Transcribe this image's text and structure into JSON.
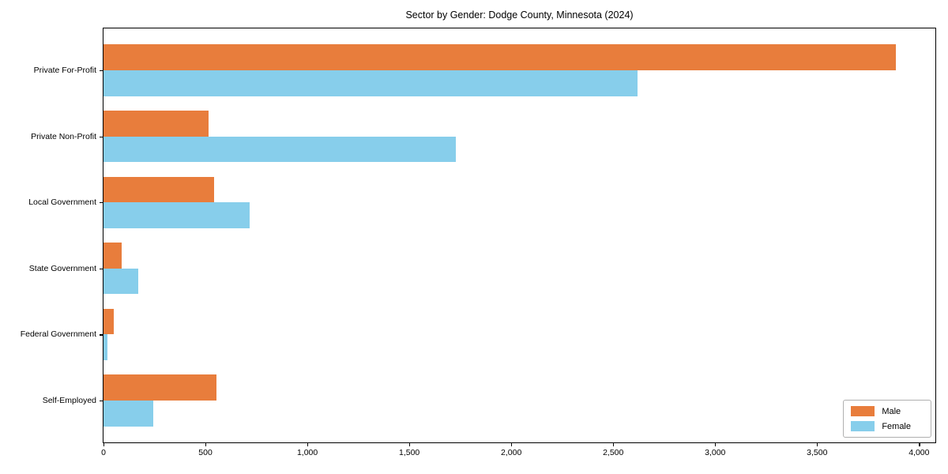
{
  "title": "Sector by Gender: Dodge County, Minnesota (2024)",
  "chart_data": {
    "type": "bar",
    "orientation": "horizontal",
    "title": "Sector by Gender: Dodge County, Minnesota (2024)",
    "categories": [
      "Private For-Profit",
      "Private Non-Profit",
      "Local Government",
      "State Government",
      "Federal Government",
      "Self-Employed"
    ],
    "series": [
      {
        "name": "Male",
        "color": "#e87d3c",
        "values": [
          3885,
          517,
          544,
          91,
          49,
          553
        ]
      },
      {
        "name": "Female",
        "color": "#87ceeb",
        "values": [
          2618,
          1730,
          717,
          169,
          18,
          246
        ]
      }
    ],
    "xlabel": "",
    "ylabel": "",
    "xlim": [
      0,
      4080
    ],
    "xticks": {
      "values": [
        0,
        500,
        1000,
        1500,
        2000,
        2500,
        3000,
        3500,
        4000
      ],
      "labels": [
        "0",
        "500",
        "1,000",
        "1,500",
        "2,000",
        "2,500",
        "3,000",
        "3,500",
        "4,000"
      ]
    },
    "grid": false,
    "legend": {
      "position": "lower right",
      "entries": [
        "Male",
        "Female"
      ]
    },
    "axis_color": "#000000",
    "plot_background": "#ffffff"
  }
}
